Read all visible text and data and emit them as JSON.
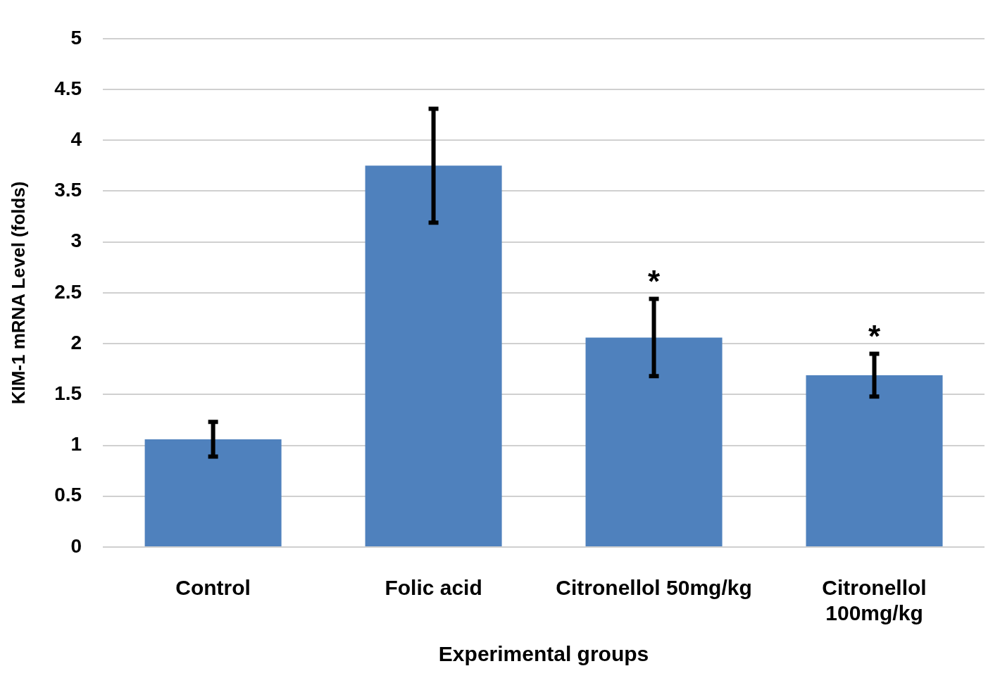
{
  "chart_data": {
    "type": "bar",
    "xlabel": "Experimental groups",
    "ylabel": "KIM-1 mRNA Level (folds)",
    "categories": [
      "Control",
      "Folic acid",
      "Citronellol 50mg/kg",
      "Citronellol 100mg/kg"
    ],
    "values": [
      1.06,
      3.75,
      2.06,
      1.69
    ],
    "color": "#4f81bd",
    "errors": [
      0.17,
      0.56,
      0.38,
      0.21
    ],
    "ylim": [
      0,
      5
    ],
    "yticks": [
      0,
      0.5,
      1,
      1.5,
      2,
      2.5,
      3,
      3.5,
      4,
      4.5,
      5
    ],
    "grid": "y",
    "annotations": [
      {
        "text": "*",
        "x": "Citronellol 50mg/kg",
        "y": 2.44
      },
      {
        "text": "*",
        "x": "Citronellol 100mg/kg",
        "y": 1.9
      }
    ]
  }
}
